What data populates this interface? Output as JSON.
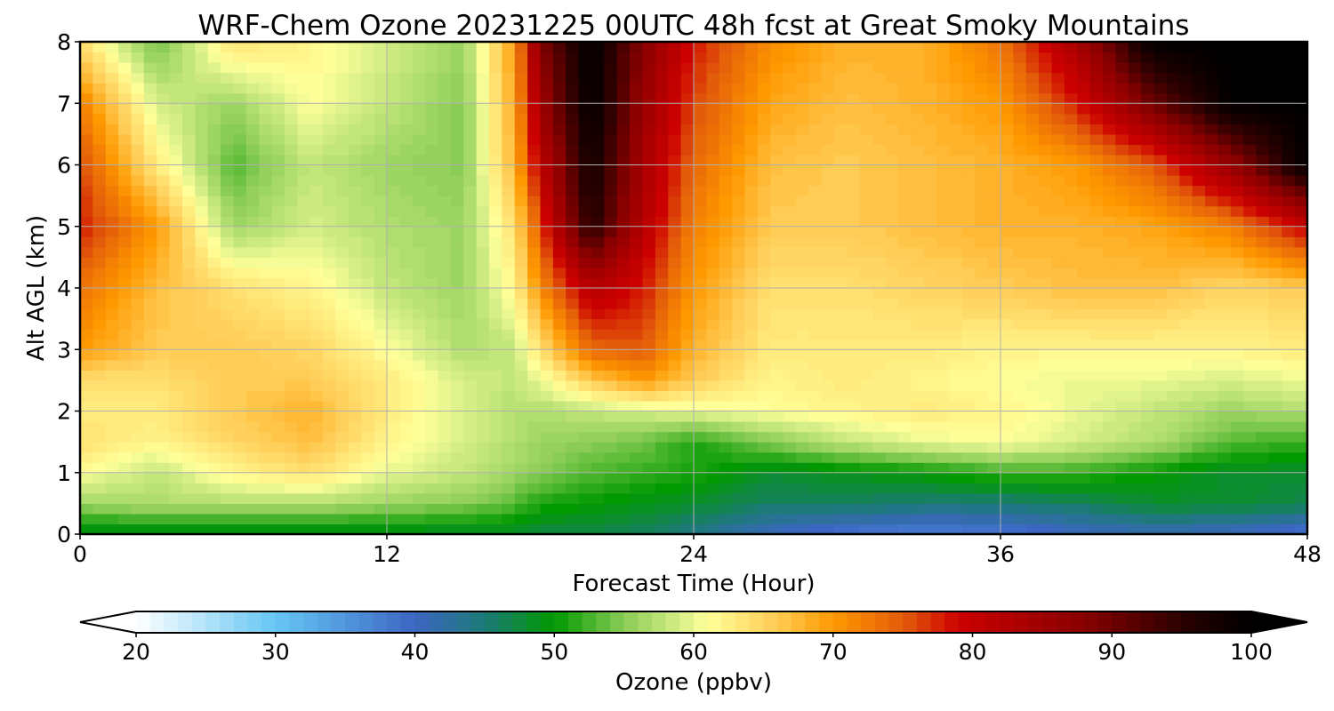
{
  "chart_data": {
    "type": "heatmap",
    "subtype": "time-height contour",
    "title": "WRF-Chem Ozone  20231225 00UTC 48h fcst at Great Smoky Mountains",
    "xlabel": "Forecast Time (Hour)",
    "ylabel": "Alt AGL (km)",
    "xlim": [
      0,
      48
    ],
    "ylim": [
      0,
      8
    ],
    "xticks": [
      0,
      12,
      24,
      36,
      48
    ],
    "yticks": [
      0,
      1,
      2,
      3,
      4,
      5,
      6,
      7,
      8
    ],
    "grid": true,
    "x": [
      0,
      3,
      6,
      9,
      12,
      15,
      17,
      18,
      20,
      22,
      24,
      27,
      30,
      33,
      36,
      39,
      42,
      45,
      48
    ],
    "y": [
      0,
      0.5,
      1,
      1.5,
      2,
      2.5,
      3,
      4,
      5,
      6,
      7,
      8
    ],
    "z": [
      [
        48,
        48,
        48,
        48,
        48,
        48,
        48,
        47,
        47,
        46,
        44,
        40,
        38,
        37,
        38,
        40,
        41,
        40,
        38
      ],
      [
        56,
        57,
        57,
        57,
        56,
        55,
        53,
        51,
        50,
        49,
        48,
        46,
        46,
        45,
        45,
        46,
        48,
        48,
        47
      ],
      [
        61,
        58,
        62,
        64,
        60,
        58,
        56,
        55,
        53,
        52,
        51,
        48,
        49,
        50,
        52,
        52,
        50,
        48,
        48
      ],
      [
        64,
        62,
        65,
        67,
        62,
        59,
        57,
        56,
        55,
        54,
        51,
        55,
        58,
        60,
        61,
        59,
        57,
        53,
        52
      ],
      [
        63,
        63,
        66,
        68,
        63,
        59,
        57,
        57,
        58,
        59,
        60,
        61,
        62,
        63,
        62,
        60,
        58,
        56,
        57
      ],
      [
        64,
        64,
        66,
        66,
        63,
        59,
        58,
        60,
        66,
        70,
        66,
        62,
        63,
        62,
        61,
        60,
        60,
        59,
        60
      ],
      [
        70,
        66,
        66,
        65,
        61,
        57,
        58,
        64,
        74,
        75,
        68,
        63,
        63,
        63,
        62,
        62,
        62,
        62,
        63
      ],
      [
        73,
        67,
        64,
        62,
        58,
        56,
        62,
        71,
        82,
        78,
        70,
        64,
        64,
        65,
        66,
        67,
        67,
        65,
        66
      ],
      [
        78,
        70,
        56,
        59,
        57,
        56,
        64,
        76,
        96,
        82,
        72,
        66,
        66,
        67,
        68,
        68,
        69,
        72,
        80
      ],
      [
        76,
        63,
        53,
        58,
        56,
        55,
        68,
        81,
        98,
        84,
        74,
        67,
        66,
        67,
        68,
        70,
        75,
        86,
        100
      ],
      [
        72,
        59,
        56,
        61,
        58,
        55,
        69,
        85,
        100,
        86,
        76,
        69,
        67,
        68,
        70,
        78,
        90,
        100,
        100
      ],
      [
        64,
        54,
        64,
        62,
        59,
        56,
        70,
        88,
        100,
        88,
        78,
        71,
        68,
        68,
        73,
        84,
        100,
        100,
        100
      ]
    ],
    "colorbar": {
      "label": "Ozone  (ppbv)",
      "min": 20,
      "max": 100,
      "ticks": [
        20,
        30,
        40,
        50,
        60,
        70,
        80,
        90,
        100
      ],
      "extend": "both",
      "orientation": "horizontal",
      "placement": "bottom",
      "stops": [
        [
          20,
          "#ffffff"
        ],
        [
          30,
          "#66c6f4"
        ],
        [
          40,
          "#3c66c2"
        ],
        [
          45,
          "#1d7a78"
        ],
        [
          50,
          "#009900"
        ],
        [
          55,
          "#8acc55"
        ],
        [
          59,
          "#d6ee88"
        ],
        [
          61,
          "#ffff99"
        ],
        [
          66,
          "#ffcc55"
        ],
        [
          70,
          "#ff9900"
        ],
        [
          75,
          "#e35c0a"
        ],
        [
          79,
          "#cc0000"
        ],
        [
          88,
          "#880000"
        ],
        [
          95,
          "#2a0000"
        ],
        [
          100,
          "#000000"
        ]
      ]
    }
  }
}
